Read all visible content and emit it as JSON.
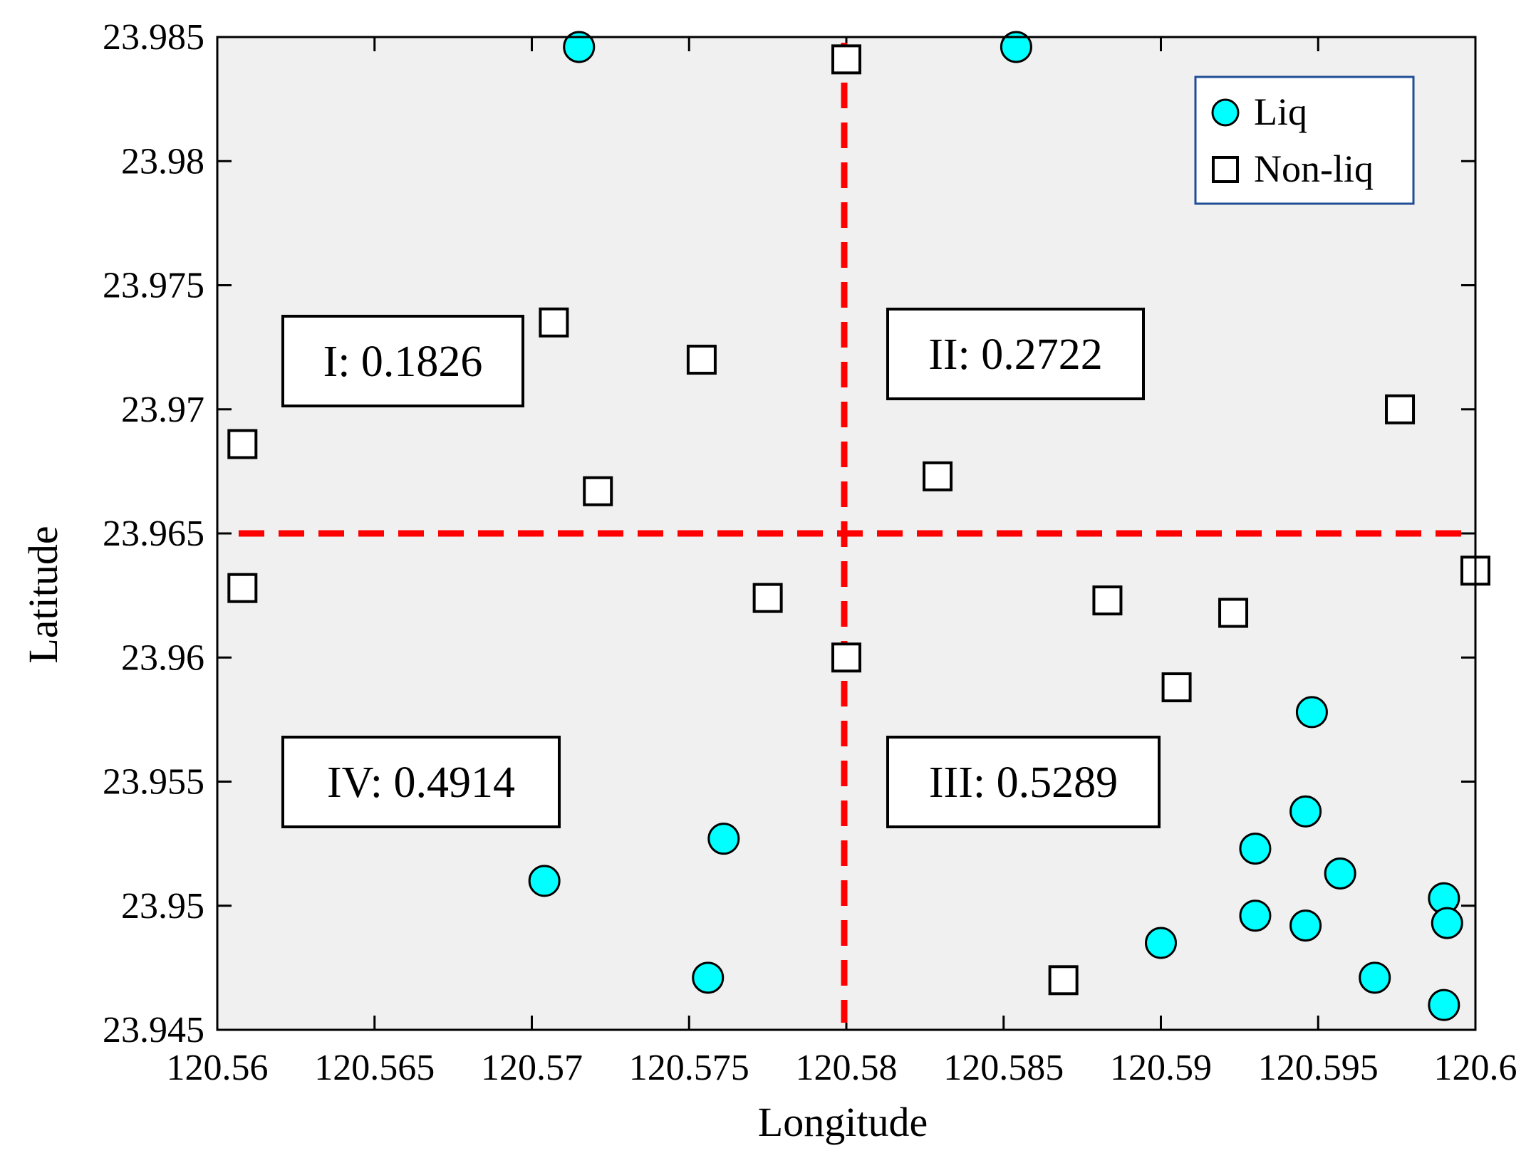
{
  "chart_data": {
    "type": "scatter",
    "title": "",
    "xlabel": "Longitude",
    "ylabel": "Latitude",
    "xlim": [
      120.56,
      120.6
    ],
    "ylim": [
      23.945,
      23.985
    ],
    "xticks": [
      120.56,
      120.565,
      120.57,
      120.575,
      120.58,
      120.585,
      120.59,
      120.595,
      120.6
    ],
    "xtick_labels": [
      "120.56",
      "120.565",
      "120.57",
      "120.575",
      "120.58",
      "120.585",
      "120.59",
      "120.595",
      "120.6"
    ],
    "yticks": [
      23.945,
      23.95,
      23.955,
      23.96,
      23.965,
      23.97,
      23.975,
      23.98,
      23.985
    ],
    "ytick_labels": [
      "23.945",
      "23.95",
      "23.955",
      "23.96",
      "23.965",
      "23.97",
      "23.975",
      "23.98",
      "23.985"
    ],
    "background": "#f0f0f0",
    "grid": false,
    "legend": {
      "placement": "top-right",
      "border_color": "#1f4e96"
    },
    "series": [
      {
        "name": "Liq",
        "marker": "circle",
        "color": "#00ffff",
        "edge_color": "#000000",
        "points": [
          [
            120.5715,
            23.9846
          ],
          [
            120.5854,
            23.9846
          ],
          [
            120.5761,
            23.9527
          ],
          [
            120.5704,
            23.951
          ],
          [
            120.5756,
            23.9471
          ],
          [
            120.5948,
            23.9578
          ],
          [
            120.5946,
            23.9538
          ],
          [
            120.593,
            23.9523
          ],
          [
            120.5957,
            23.9513
          ],
          [
            120.599,
            23.9503
          ],
          [
            120.593,
            23.9496
          ],
          [
            120.5946,
            23.9492
          ],
          [
            120.5991,
            23.9493
          ],
          [
            120.59,
            23.9485
          ],
          [
            120.5968,
            23.9471
          ],
          [
            120.599,
            23.946
          ]
        ]
      },
      {
        "name": "Non-liq",
        "marker": "square",
        "color": "#ffffff",
        "edge_color": "#000000",
        "points": [
          [
            120.58,
            23.9841
          ],
          [
            120.5707,
            23.9735
          ],
          [
            120.5754,
            23.972
          ],
          [
            120.5608,
            23.9686
          ],
          [
            120.5721,
            23.9667
          ],
          [
            120.5829,
            23.9673
          ],
          [
            120.5976,
            23.97
          ],
          [
            120.5608,
            23.9628
          ],
          [
            120.5775,
            23.9624
          ],
          [
            120.5883,
            23.9623
          ],
          [
            120.5923,
            23.9618
          ],
          [
            120.6,
            23.9635
          ],
          [
            120.58,
            23.96
          ],
          [
            120.5905,
            23.9588
          ],
          [
            120.5869,
            23.947
          ]
        ]
      }
    ],
    "reference_lines": [
      {
        "orientation": "vertical",
        "x": 120.58,
        "y_range": [
          23.945,
          23.985
        ],
        "color": "#ff0000",
        "style": "dashed"
      },
      {
        "orientation": "horizontal",
        "y": 23.965,
        "x_range": [
          120.56,
          120.6
        ],
        "color": "#ff0000",
        "style": "dashed"
      }
    ],
    "annotations": [
      {
        "text": "I: 0.1826",
        "quadrant": "top-left"
      },
      {
        "text": "II: 0.2722",
        "quadrant": "top-right"
      },
      {
        "text": "III: 0.5289",
        "quadrant": "bottom-right"
      },
      {
        "text": "IV: 0.4914",
        "quadrant": "bottom-left"
      }
    ]
  }
}
